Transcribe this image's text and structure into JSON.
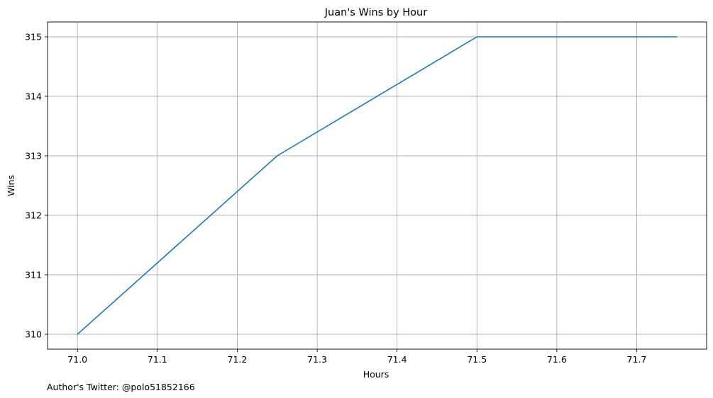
{
  "footnote": "Author's Twitter: @polo51852166",
  "colors": {
    "line": "#1f77b4",
    "grid": "#b0b0b0",
    "axis": "#000000",
    "background": "#ffffff"
  },
  "chart_data": {
    "type": "line",
    "title": "Juan's Wins by Hour",
    "xlabel": "Hours",
    "ylabel": "Wins",
    "xlim": [
      70.9625,
      71.7875
    ],
    "ylim": [
      309.75,
      315.25
    ],
    "xticks": [
      71.0,
      71.1,
      71.2,
      71.3,
      71.4,
      71.5,
      71.6,
      71.7
    ],
    "xtick_labels": [
      "71.0",
      "71.1",
      "71.2",
      "71.3",
      "71.4",
      "71.5",
      "71.6",
      "71.7"
    ],
    "yticks": [
      310,
      311,
      312,
      313,
      314,
      315
    ],
    "ytick_labels": [
      "310",
      "311",
      "312",
      "313",
      "314",
      "315"
    ],
    "grid": true,
    "series": [
      {
        "x": [
          71.0,
          71.25,
          71.5,
          71.75
        ],
        "y": [
          310,
          313,
          315,
          315
        ]
      }
    ]
  }
}
